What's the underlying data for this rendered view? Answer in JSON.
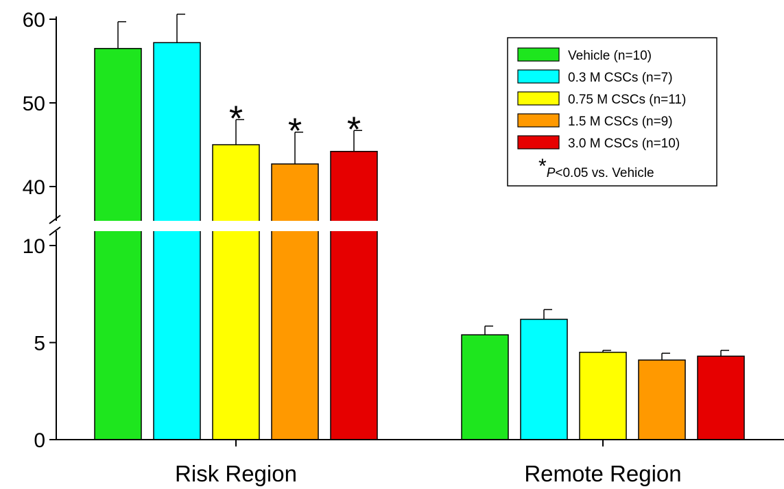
{
  "chart_data": {
    "type": "bar",
    "categories": [
      "Risk Region",
      "Remote Region"
    ],
    "series": [
      {
        "name": "Vehicle (n=10)",
        "color": "#1ee61e",
        "values": [
          56.5,
          5.4
        ],
        "errors": [
          3.2,
          0.45
        ]
      },
      {
        "name": "0.3 M CSCs  (n=7)",
        "color": "#00ffff",
        "values": [
          57.2,
          6.2
        ],
        "errors": [
          3.4,
          0.5
        ]
      },
      {
        "name": "0.75 M CSCs (n=11)",
        "color": "#ffff00",
        "values": [
          45.0,
          4.5
        ],
        "errors": [
          3.0,
          0.1
        ]
      },
      {
        "name": "1.5 M CSCs  (n=9)",
        "color": "#ff9900",
        "values": [
          42.7,
          4.1
        ],
        "errors": [
          3.8,
          0.35
        ]
      },
      {
        "name": "3.0 M CSCs (n=10)",
        "color": "#e60000",
        "values": [
          44.2,
          4.3
        ],
        "errors": [
          2.5,
          0.3
        ]
      }
    ],
    "y_axis": {
      "broken": true,
      "lower_range": [
        0,
        10
      ],
      "upper_range": [
        35,
        60
      ],
      "lower_ticks": [
        "0",
        "5",
        "10"
      ],
      "upper_ticks": [
        "40",
        "50",
        "60"
      ]
    },
    "significance": {
      "marker": "*",
      "marked": [
        [
          0,
          2
        ],
        [
          0,
          3
        ],
        [
          0,
          4
        ]
      ],
      "note_star": "*",
      "note_p": "P",
      "note_rest": "<0.05 vs. Vehicle"
    },
    "legend_position": "top-right",
    "title": "",
    "xlabel": "",
    "ylabel": ""
  }
}
